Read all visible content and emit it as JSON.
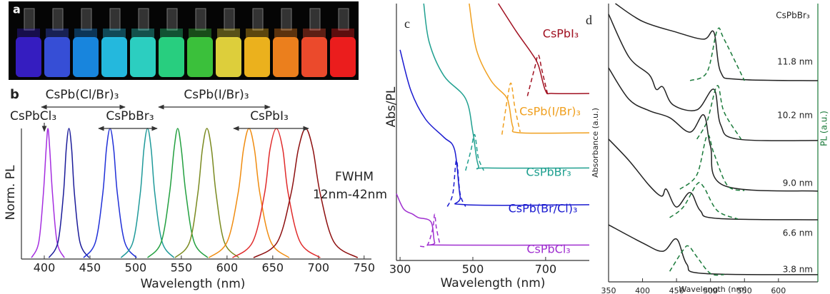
{
  "panel_labels": [
    "a",
    "b",
    "c",
    "d"
  ],
  "chart_data": [
    {
      "type": "line",
      "xlabel": "Wavelength (nm)",
      "ylabel": "Norm. PL",
      "xlim": [
        375,
        758
      ],
      "ylim": [
        0,
        1
      ],
      "xticks": [
        400,
        450,
        500,
        550,
        600,
        650,
        700,
        750
      ],
      "annotations": [
        "CsPb(Cl/Br)₃",
        "CsPb(I/Br)₃",
        "CsPbCl₃",
        "CsPbBr₃",
        "CsPbI₃",
        "FWHM",
        "12nm-42nm"
      ],
      "series": [
        {
          "color": "#a52ee0",
          "x": [
            386,
            394,
            399,
            402,
            404,
            406,
            409,
            414,
            422
          ],
          "values": [
            0.01,
            0.13,
            0.5,
            0.84,
            1,
            0.84,
            0.5,
            0.13,
            0.01
          ]
        },
        {
          "color": "#1c1c9a",
          "x": [
            405,
            415,
            421,
            424,
            427,
            430,
            433,
            439,
            449
          ],
          "values": [
            0.01,
            0.13,
            0.5,
            0.84,
            1,
            0.84,
            0.5,
            0.13,
            0.01
          ]
        },
        {
          "color": "#2030d8",
          "x": [
            443,
            456,
            464,
            468,
            472,
            476,
            480,
            488,
            501
          ],
          "values": [
            0.01,
            0.13,
            0.5,
            0.84,
            1,
            0.84,
            0.5,
            0.13,
            0.01
          ]
        },
        {
          "color": "#1f9a9a",
          "x": [
            484,
            497,
            505,
            509,
            513,
            517,
            521,
            529,
            542
          ],
          "values": [
            0.01,
            0.13,
            0.5,
            0.84,
            1,
            0.84,
            0.5,
            0.13,
            0.01
          ]
        },
        {
          "color": "#23a040",
          "x": [
            513,
            528,
            537,
            542,
            546,
            550,
            555,
            564,
            579
          ],
          "values": [
            0.01,
            0.13,
            0.5,
            0.84,
            1,
            0.84,
            0.5,
            0.13,
            0.01
          ]
        },
        {
          "color": "#7a8a20",
          "x": [
            543,
            559,
            568,
            573,
            578,
            583,
            588,
            597,
            613
          ],
          "values": [
            0.01,
            0.13,
            0.5,
            0.84,
            1,
            0.84,
            0.5,
            0.13,
            0.01
          ]
        },
        {
          "color": "#f08c10",
          "x": [
            580,
            600,
            612,
            618,
            624,
            630,
            636,
            648,
            668
          ],
          "values": [
            0.01,
            0.13,
            0.5,
            0.84,
            1,
            0.84,
            0.5,
            0.13,
            0.01
          ]
        },
        {
          "color": "#e02a2a",
          "x": [
            606,
            628,
            641,
            647,
            654,
            661,
            667,
            680,
            702
          ],
          "values": [
            0.01,
            0.13,
            0.5,
            0.84,
            1,
            0.84,
            0.5,
            0.13,
            0.01
          ]
        },
        {
          "color": "#8e1010",
          "x": [
            629,
            655,
            670,
            678,
            686,
            694,
            702,
            717,
            743
          ],
          "values": [
            0.01,
            0.13,
            0.5,
            0.84,
            1,
            0.84,
            0.5,
            0.13,
            0.01
          ]
        }
      ]
    },
    {
      "type": "line",
      "xlabel": "Wavelength (nm)",
      "ylabel": "Abs/PL",
      "xlim": [
        290,
        820
      ],
      "ylim": [
        0,
        10
      ],
      "xticks": [
        300,
        500,
        700
      ],
      "labels": [
        "CsPbI₃",
        "CsPb(I/Br)₃",
        "CsPbBr₃",
        "CsPb(Br/Cl)₃",
        "CsPbCl₃"
      ],
      "label_colors": [
        "#a01020",
        "#f0a020",
        "#20a090",
        "#1a1ad0",
        "#a030d0"
      ],
      "series": [
        {
          "color": "#a030d0",
          "x": [
            290,
            310,
            335,
            350,
            385,
            395,
            410,
            820
          ],
          "values": [
            2.6,
            2.0,
            1.8,
            1.67,
            1.5,
            0.7,
            0.6,
            0.6
          ]
        },
        {
          "color": "#a030d0",
          "dashed": true,
          "x": [
            355,
            375,
            390,
            395,
            400,
            410
          ],
          "values": [
            0.55,
            0.6,
            1.25,
            1.8,
            1.25,
            0.6
          ]
        },
        {
          "color": "#1a1ad0",
          "x": [
            300,
            330,
            370,
            420,
            450,
            465,
            480,
            820
          ],
          "values": [
            8.2,
            6.6,
            5.5,
            4.8,
            4.3,
            2.5,
            2.17,
            2.17
          ]
        },
        {
          "color": "#1a1ad0",
          "dashed": true,
          "x": [
            430,
            445,
            455,
            465,
            480
          ],
          "values": [
            2.1,
            2.6,
            3.9,
            2.6,
            2.1
          ]
        },
        {
          "color": "#20a090",
          "x": [
            365,
            380,
            420,
            480,
            500,
            515,
            540,
            820
          ],
          "values": [
            10,
            8.5,
            7.2,
            6.3,
            5.0,
            3.7,
            3.6,
            3.6
          ]
        },
        {
          "color": "#20a090",
          "dashed": true,
          "x": [
            480,
            495,
            505,
            515,
            530
          ],
          "values": [
            3.5,
            4.3,
            4.9,
            4.0,
            3.5
          ]
        },
        {
          "color": "#f0a020",
          "x": [
            490,
            510,
            550,
            590,
            600,
            610,
            630,
            820
          ],
          "values": [
            10,
            8.2,
            7.0,
            6.4,
            6.0,
            5.2,
            4.97,
            4.97
          ]
        },
        {
          "color": "#f0a020",
          "dashed": true,
          "x": [
            580,
            595,
            605,
            615,
            630
          ],
          "values": [
            4.9,
            6.3,
            6.9,
            6.0,
            5.0
          ]
        },
        {
          "color": "#a01020",
          "x": [
            570,
            620,
            660,
            680,
            700,
            720,
            820
          ],
          "values": [
            10,
            8.9,
            8.1,
            7.6,
            6.6,
            6.5,
            6.5
          ]
        },
        {
          "color": "#a01020",
          "dashed": true,
          "x": [
            650,
            670,
            680,
            690,
            705
          ],
          "values": [
            6.4,
            7.5,
            8.0,
            7.4,
            6.5
          ]
        }
      ]
    },
    {
      "type": "line",
      "title": "CsPbBr₃",
      "xlabel": "Wavelength (nm)",
      "ylabel": "Absorbance (a.u.)",
      "y2label": "PL (a.u.)",
      "xlim": [
        350,
        658
      ],
      "ylim": [
        0,
        10
      ],
      "xticks": [
        350,
        400,
        450,
        500,
        550,
        600
      ],
      "labels": [
        "11.8 nm",
        "10.2 nm",
        "9.0 nm",
        "6.6 nm",
        "3.8 nm"
      ],
      "series": [
        {
          "color": "#222222",
          "x": [
            360,
            400,
            450,
            490,
            505,
            515,
            540,
            658
          ],
          "values": [
            10.0,
            9.36,
            8.97,
            8.72,
            8.97,
            7.54,
            7.28,
            7.23
          ]
        },
        {
          "color": "#1a7a3a",
          "dashed": true,
          "x": [
            470,
            495,
            510,
            520,
            550
          ],
          "values": [
            7.23,
            7.54,
            9.05,
            8.72,
            7.23
          ]
        },
        {
          "color": "#222222",
          "x": [
            350,
            380,
            410,
            420,
            430,
            445,
            480,
            505,
            515,
            540,
            658
          ],
          "values": [
            9.62,
            8.08,
            7.44,
            6.92,
            7.0,
            6.36,
            6.18,
            6.92,
            5.64,
            5.13,
            5.08
          ]
        },
        {
          "color": "#1a7a3a",
          "dashed": true,
          "x": [
            480,
            495,
            510,
            520,
            545
          ],
          "values": [
            5.13,
            5.77,
            7.05,
            6.1,
            5.13
          ]
        },
        {
          "color": "#222222",
          "x": [
            350,
            380,
            410,
            440,
            470,
            490,
            500,
            520,
            658
          ],
          "values": [
            7.69,
            6.56,
            6.15,
            5.9,
            5.38,
            6.0,
            4.87,
            3.46,
            3.26
          ]
        },
        {
          "color": "#1a7a3a",
          "dashed": true,
          "x": [
            455,
            480,
            495,
            505,
            525,
            550
          ],
          "values": [
            3.33,
            3.85,
            5.26,
            4.62,
            3.46,
            3.28
          ]
        },
        {
          "color": "#222222",
          "x": [
            350,
            380,
            410,
            428,
            435,
            450,
            470,
            485,
            510,
            658
          ],
          "values": [
            5.13,
            4.36,
            3.46,
            3.08,
            3.33,
            2.69,
            3.21,
            2.56,
            2.28,
            2.23
          ]
        },
        {
          "color": "#1a7a3a",
          "dashed": true,
          "x": [
            440,
            460,
            480,
            490,
            510,
            540
          ],
          "values": [
            2.31,
            2.69,
            3.51,
            3.41,
            2.56,
            2.26
          ]
        },
        {
          "color": "#222222",
          "x": [
            350,
            400,
            430,
            450,
            465,
            490,
            658
          ],
          "values": [
            2.05,
            1.4,
            1.1,
            1.54,
            0.64,
            0.3,
            0.26
          ]
        },
        {
          "color": "#1a7a3a",
          "dashed": true,
          "x": [
            440,
            460,
            468,
            480,
            500,
            520
          ],
          "values": [
            0.38,
            1.15,
            1.28,
            0.9,
            0.3,
            0.26
          ]
        }
      ]
    }
  ]
}
